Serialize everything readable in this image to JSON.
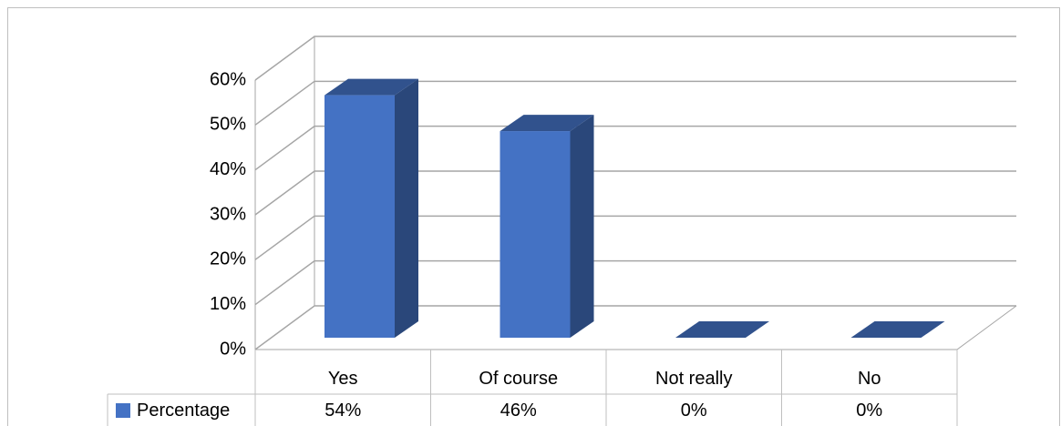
{
  "chart_data": {
    "type": "bar3d",
    "categories": [
      "Yes",
      "Of course",
      "Not really",
      "No"
    ],
    "series": [
      {
        "name": "Percentage",
        "color": "#4472c4",
        "values": [
          54,
          46,
          0,
          0
        ],
        "value_labels": [
          "54%",
          "46%",
          "0%",
          "0%"
        ]
      }
    ],
    "ylim": [
      0,
      60
    ],
    "yticks": [
      {
        "value": 0,
        "label": "0%"
      },
      {
        "value": 10,
        "label": "10%"
      },
      {
        "value": 20,
        "label": "20%"
      },
      {
        "value": 30,
        "label": "30%"
      },
      {
        "value": 40,
        "label": "40%"
      },
      {
        "value": 50,
        "label": "50%"
      },
      {
        "value": 60,
        "label": "60%"
      }
    ],
    "grid": true
  }
}
